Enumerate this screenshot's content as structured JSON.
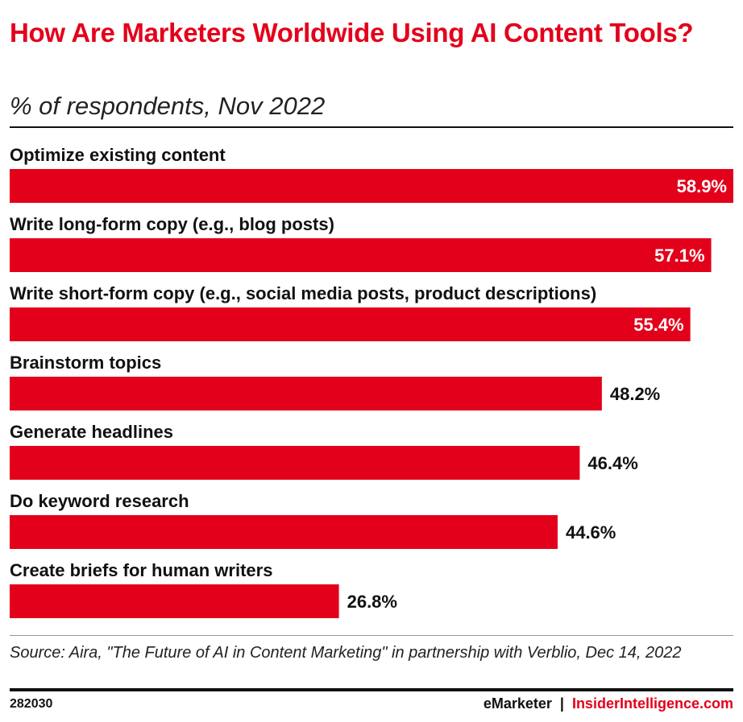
{
  "header": {
    "title": "How Are Marketers Worldwide Using AI Content Tools?",
    "subtitle": "% of respondents, Nov 2022"
  },
  "footer": {
    "source": "Source: Aira, \"The Future of AI in Content Marketing\" in partnership with Verblio, Dec 14, 2022",
    "chart_id": "282030",
    "brand_left": "eMarketer",
    "separator": "|",
    "brand_right": "InsiderIntelligence.com"
  },
  "colors": {
    "bar": "#e3001b",
    "title": "#e3001b",
    "label_inside": "#ffffff",
    "label_outside": "#111111"
  },
  "chart_data": {
    "type": "bar",
    "orientation": "horizontal",
    "title": "How Are Marketers Worldwide Using AI Content Tools?",
    "subtitle": "% of respondents, Nov 2022",
    "categories": [
      "Optimize existing content",
      "Write long-form copy (e.g., blog posts)",
      "Write short-form copy (e.g., social media posts, product descriptions)",
      "Brainstorm topics",
      "Generate headlines",
      "Do keyword research",
      "Create briefs for human writers"
    ],
    "values": [
      58.9,
      57.1,
      55.4,
      48.2,
      46.4,
      44.6,
      26.8
    ],
    "value_labels": [
      "58.9%",
      "57.1%",
      "55.4%",
      "48.2%",
      "46.4%",
      "44.6%",
      "26.8%"
    ],
    "xlim": [
      0,
      58.9
    ],
    "grid": false,
    "legend": "none"
  }
}
